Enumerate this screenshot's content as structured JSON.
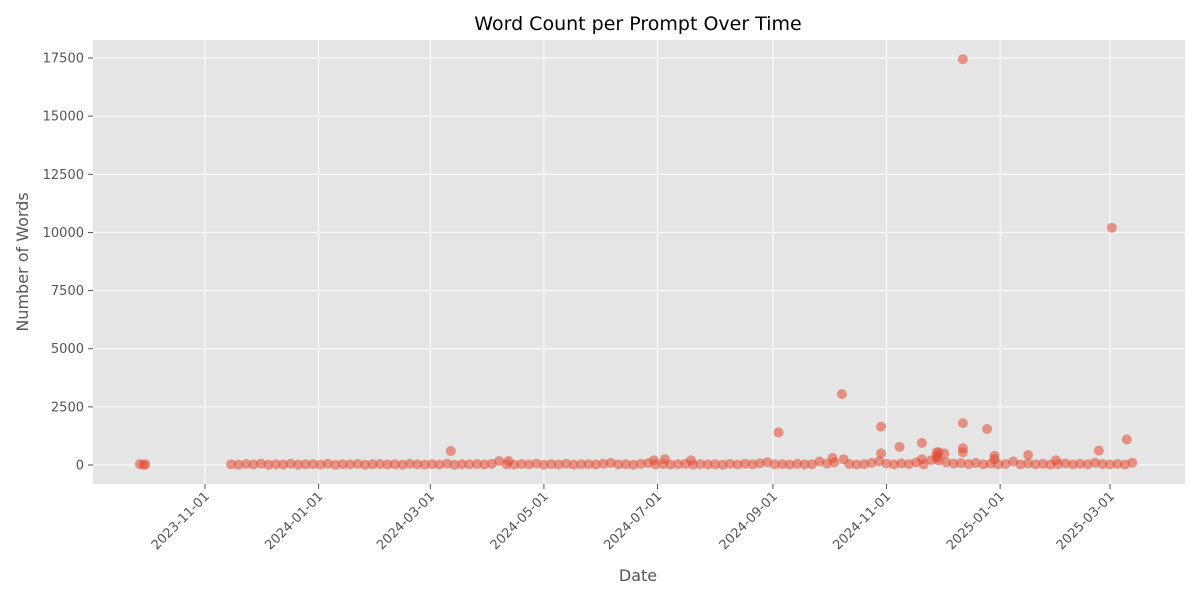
{
  "chart_data": {
    "type": "scatter",
    "title": "Word Count per Prompt Over Time",
    "xlabel": "Date",
    "ylabel": "Number of Words",
    "xlim": [
      "2023-09-11",
      "2025-03-31"
    ],
    "ylim": [
      -870,
      18300
    ],
    "x_ticks": [
      "2023-11-01",
      "2024-01-01",
      "2024-03-01",
      "2024-05-01",
      "2024-07-01",
      "2024-09-01",
      "2024-11-01",
      "2025-01-01",
      "2025-03-01"
    ],
    "y_ticks": [
      0,
      2500,
      5000,
      7500,
      10000,
      12500,
      15000,
      17500
    ],
    "grid": true,
    "marker_color": "#E24A33",
    "marker_alpha": 0.55,
    "background": "#E5E5E5",
    "points": [
      [
        "2023-09-27",
        40
      ],
      [
        "2023-09-29",
        10
      ],
      [
        "2023-09-30",
        25
      ],
      [
        "2023-11-15",
        30
      ],
      [
        "2023-11-19",
        12
      ],
      [
        "2023-11-23",
        45
      ],
      [
        "2023-11-27",
        20
      ],
      [
        "2023-12-01",
        60
      ],
      [
        "2023-12-05",
        8
      ],
      [
        "2023-12-09",
        35
      ],
      [
        "2023-12-13",
        22
      ],
      [
        "2023-12-17",
        50
      ],
      [
        "2023-12-21",
        15
      ],
      [
        "2023-12-25",
        28
      ],
      [
        "2023-12-29",
        40
      ],
      [
        "2024-01-02",
        18
      ],
      [
        "2024-01-06",
        55
      ],
      [
        "2024-01-10",
        10
      ],
      [
        "2024-01-14",
        33
      ],
      [
        "2024-01-18",
        25
      ],
      [
        "2024-01-22",
        48
      ],
      [
        "2024-01-26",
        14
      ],
      [
        "2024-01-30",
        30
      ],
      [
        "2024-02-03",
        42
      ],
      [
        "2024-02-07",
        20
      ],
      [
        "2024-02-11",
        36
      ],
      [
        "2024-02-15",
        12
      ],
      [
        "2024-02-19",
        50
      ],
      [
        "2024-02-23",
        26
      ],
      [
        "2024-02-27",
        18
      ],
      [
        "2024-03-02",
        40
      ],
      [
        "2024-03-06",
        22
      ],
      [
        "2024-03-10",
        60
      ],
      [
        "2024-03-12",
        600
      ],
      [
        "2024-03-14",
        15
      ],
      [
        "2024-03-18",
        35
      ],
      [
        "2024-03-22",
        28
      ],
      [
        "2024-03-26",
        45
      ],
      [
        "2024-03-30",
        20
      ],
      [
        "2024-04-03",
        55
      ],
      [
        "2024-04-07",
        170
      ],
      [
        "2024-04-11",
        30
      ],
      [
        "2024-04-12",
        170
      ],
      [
        "2024-04-15",
        18
      ],
      [
        "2024-04-19",
        42
      ],
      [
        "2024-04-23",
        25
      ],
      [
        "2024-04-27",
        60
      ],
      [
        "2024-05-01",
        12
      ],
      [
        "2024-05-05",
        38
      ],
      [
        "2024-05-09",
        22
      ],
      [
        "2024-05-13",
        50
      ],
      [
        "2024-05-17",
        16
      ],
      [
        "2024-05-21",
        33
      ],
      [
        "2024-05-25",
        40
      ],
      [
        "2024-05-29",
        20
      ],
      [
        "2024-06-02",
        58
      ],
      [
        "2024-06-06",
        90
      ],
      [
        "2024-06-10",
        25
      ],
      [
        "2024-06-14",
        36
      ],
      [
        "2024-06-18",
        14
      ],
      [
        "2024-06-22",
        48
      ],
      [
        "2024-06-26",
        80
      ],
      [
        "2024-06-29",
        200
      ],
      [
        "2024-06-30",
        30
      ],
      [
        "2024-07-04",
        44
      ],
      [
        "2024-07-05",
        250
      ],
      [
        "2024-07-08",
        20
      ],
      [
        "2024-07-12",
        36
      ],
      [
        "2024-07-16",
        52
      ],
      [
        "2024-07-19",
        200
      ],
      [
        "2024-07-20",
        18
      ],
      [
        "2024-07-24",
        40
      ],
      [
        "2024-07-28",
        26
      ],
      [
        "2024-08-01",
        34
      ],
      [
        "2024-08-05",
        12
      ],
      [
        "2024-08-09",
        46
      ],
      [
        "2024-08-13",
        22
      ],
      [
        "2024-08-17",
        55
      ],
      [
        "2024-08-21",
        30
      ],
      [
        "2024-08-25",
        70
      ],
      [
        "2024-08-29",
        120
      ],
      [
        "2024-09-02",
        28
      ],
      [
        "2024-09-04",
        1400
      ],
      [
        "2024-09-06",
        40
      ],
      [
        "2024-09-10",
        18
      ],
      [
        "2024-09-14",
        50
      ],
      [
        "2024-09-18",
        25
      ],
      [
        "2024-09-22",
        36
      ],
      [
        "2024-09-26",
        150
      ],
      [
        "2024-09-30",
        60
      ],
      [
        "2024-10-03",
        300
      ],
      [
        "2024-10-04",
        110
      ],
      [
        "2024-10-08",
        3050
      ],
      [
        "2024-10-09",
        250
      ],
      [
        "2024-10-12",
        45
      ],
      [
        "2024-10-16",
        20
      ],
      [
        "2024-10-20",
        38
      ],
      [
        "2024-10-24",
        90
      ],
      [
        "2024-10-28",
        160
      ],
      [
        "2024-10-29",
        1650
      ],
      [
        "2024-10-29",
        500
      ],
      [
        "2024-11-01",
        60
      ],
      [
        "2024-11-05",
        30
      ],
      [
        "2024-11-08",
        780
      ],
      [
        "2024-11-09",
        70
      ],
      [
        "2024-11-13",
        40
      ],
      [
        "2024-11-17",
        110
      ],
      [
        "2024-11-20",
        950
      ],
      [
        "2024-11-20",
        250
      ],
      [
        "2024-11-21",
        30
      ],
      [
        "2024-11-25",
        210
      ],
      [
        "2024-11-28",
        550
      ],
      [
        "2024-11-28",
        400
      ],
      [
        "2024-11-28",
        300
      ],
      [
        "2024-11-29",
        550
      ],
      [
        "2024-11-29",
        200
      ],
      [
        "2024-12-02",
        500
      ],
      [
        "2024-12-03",
        120
      ],
      [
        "2024-12-07",
        60
      ],
      [
        "2024-12-11",
        80
      ],
      [
        "2024-12-12",
        17450
      ],
      [
        "2024-12-12",
        1800
      ],
      [
        "2024-12-12",
        720
      ],
      [
        "2024-12-12",
        550
      ],
      [
        "2024-12-15",
        40
      ],
      [
        "2024-12-19",
        90
      ],
      [
        "2024-12-23",
        25
      ],
      [
        "2024-12-25",
        1550
      ],
      [
        "2024-12-27",
        60
      ],
      [
        "2024-12-29",
        400
      ],
      [
        "2024-12-29",
        250
      ],
      [
        "2024-12-31",
        30
      ],
      [
        "2025-01-04",
        45
      ],
      [
        "2025-01-08",
        150
      ],
      [
        "2025-01-12",
        20
      ],
      [
        "2025-01-16",
        430
      ],
      [
        "2025-01-16",
        60
      ],
      [
        "2025-01-20",
        35
      ],
      [
        "2025-01-24",
        50
      ],
      [
        "2025-01-28",
        18
      ],
      [
        "2025-01-31",
        200
      ],
      [
        "2025-02-01",
        40
      ],
      [
        "2025-02-05",
        70
      ],
      [
        "2025-02-09",
        22
      ],
      [
        "2025-02-13",
        55
      ],
      [
        "2025-02-17",
        30
      ],
      [
        "2025-02-21",
        100
      ],
      [
        "2025-02-23",
        620
      ],
      [
        "2025-02-25",
        40
      ],
      [
        "2025-03-01",
        25
      ],
      [
        "2025-03-02",
        10200
      ],
      [
        "2025-03-05",
        48
      ],
      [
        "2025-03-09",
        20
      ],
      [
        "2025-03-10",
        1100
      ],
      [
        "2025-03-13",
        100
      ]
    ]
  }
}
